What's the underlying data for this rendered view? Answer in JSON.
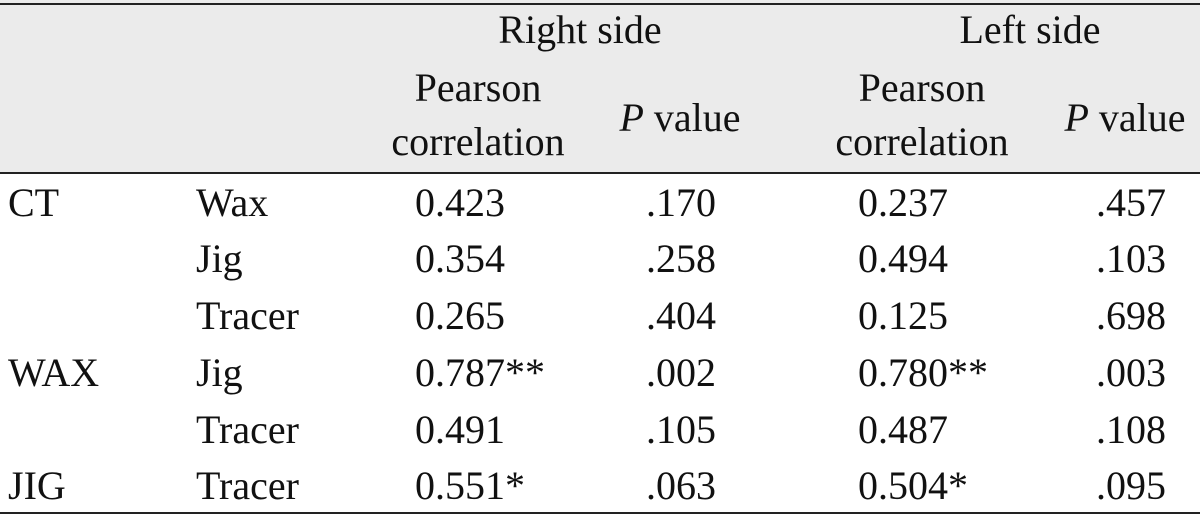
{
  "header": {
    "right_side": "Right side",
    "left_side": "Left side",
    "pearson_line1": "Pearson",
    "pearson_line2": "correlation",
    "p_symbol": "P",
    "p_rest": " value"
  },
  "rows": [
    {
      "group": "CT",
      "item": "Wax",
      "r_corr": "0.423",
      "r_p": ".170",
      "l_corr": "0.237",
      "l_p": ".457"
    },
    {
      "group": "",
      "item": "Jig",
      "r_corr": "0.354",
      "r_p": ".258",
      "l_corr": "0.494",
      "l_p": ".103"
    },
    {
      "group": "",
      "item": "Tracer",
      "r_corr": "0.265",
      "r_p": ".404",
      "l_corr": "0.125",
      "l_p": ".698"
    },
    {
      "group": "WAX",
      "item": "Jig",
      "r_corr": "0.787**",
      "r_p": ".002",
      "l_corr": "0.780**",
      "l_p": ".003"
    },
    {
      "group": "",
      "item": "Tracer",
      "r_corr": "0.491",
      "r_p": ".105",
      "l_corr": "0.487",
      "l_p": ".108"
    },
    {
      "group": "JIG",
      "item": "Tracer",
      "r_corr": "0.551*",
      "r_p": ".063",
      "l_corr": "0.504*",
      "l_p": ".095"
    }
  ]
}
